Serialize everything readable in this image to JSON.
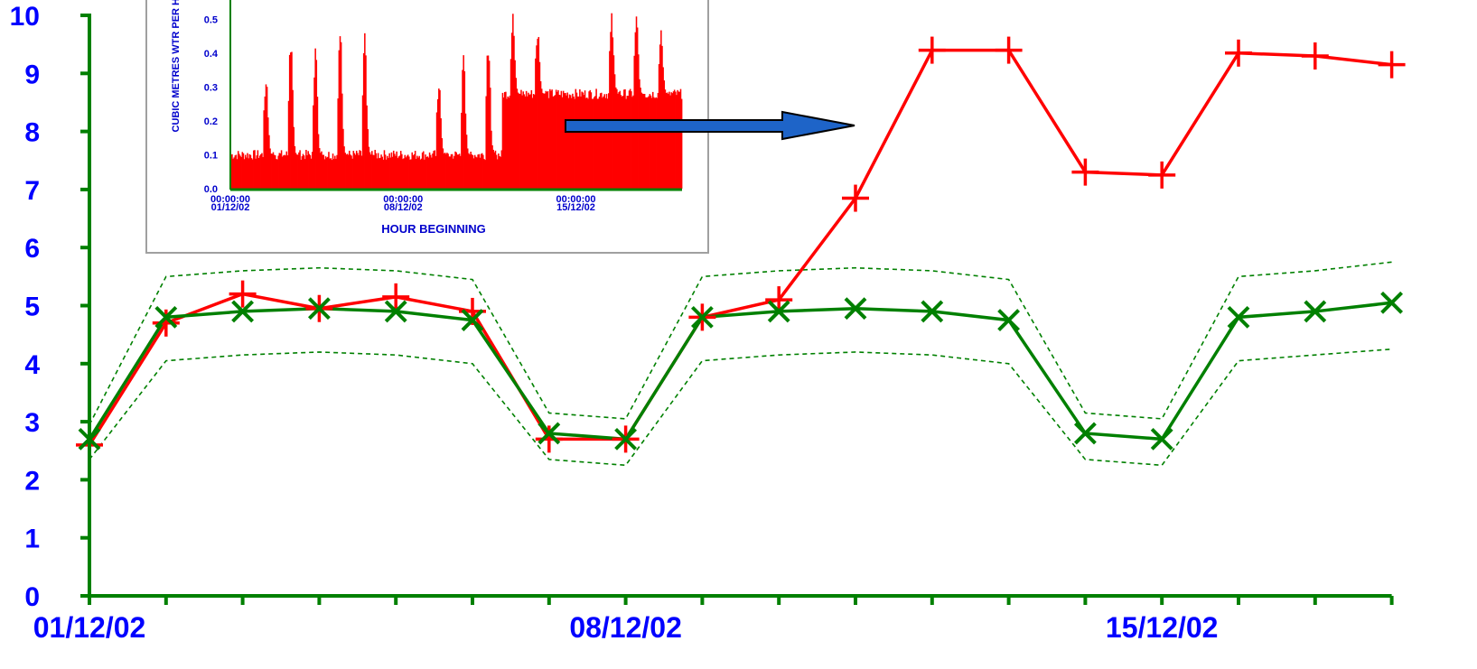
{
  "chart_data": [
    {
      "type": "line",
      "title": "",
      "xlabel": "",
      "ylabel": "",
      "ylim": [
        0,
        10
      ],
      "y_ticks": [
        "0",
        "1",
        "2",
        "3",
        "4",
        "5",
        "6",
        "7",
        "8",
        "9",
        "10"
      ],
      "x_tick_labels": [
        "01/12/02",
        "08/12/02",
        "15/12/02"
      ],
      "x_tick_label_positions": [
        1,
        8,
        15
      ],
      "x": [
        1,
        2,
        3,
        4,
        5,
        6,
        7,
        8,
        9,
        10,
        11,
        12,
        13,
        14,
        15,
        16,
        17,
        18
      ],
      "grid": false,
      "colors": {
        "axis": "#008000",
        "labels": "#0000ff",
        "actual": "#ff0000",
        "expected": "#008000",
        "arrow": "#1e64c8"
      },
      "series": [
        {
          "name": "",
          "color": "#ff0000",
          "marker": "+",
          "style": "solid",
          "values": [
            2.6,
            4.7,
            5.2,
            4.95,
            5.15,
            4.9,
            2.7,
            2.7,
            4.8,
            5.1,
            6.85,
            9.4,
            9.4,
            7.3,
            7.25,
            9.35,
            9.3,
            9.15
          ]
        },
        {
          "name": "",
          "color": "#008000",
          "marker": "x",
          "style": "solid",
          "values": [
            2.7,
            4.8,
            4.9,
            4.95,
            4.9,
            4.75,
            2.8,
            2.7,
            4.8,
            4.9,
            4.95,
            4.9,
            4.75,
            2.8,
            2.7,
            4.8,
            4.9,
            5.05
          ]
        },
        {
          "name": "",
          "color": "#008000",
          "marker": "none",
          "style": "dashed",
          "values": [
            2.95,
            5.5,
            5.6,
            5.65,
            5.6,
            5.45,
            3.15,
            3.05,
            5.5,
            5.6,
            5.65,
            5.6,
            5.45,
            3.15,
            3.05,
            5.5,
            5.6,
            5.75
          ]
        },
        {
          "name": "",
          "color": "#008000",
          "marker": "none",
          "style": "dashed",
          "values": [
            2.35,
            4.05,
            4.15,
            4.2,
            4.15,
            4.0,
            2.35,
            2.25,
            4.05,
            4.15,
            4.2,
            4.15,
            4.0,
            2.35,
            2.25,
            4.05,
            4.15,
            4.25
          ]
        }
      ]
    },
    {
      "type": "bar",
      "title": "",
      "xlabel": "HOUR BEGINNING",
      "ylabel": "CUBIC METRES WTR PER H",
      "ylim": [
        0,
        0.55
      ],
      "y_ticks": [
        "0.0",
        "0.1",
        "0.2",
        "0.3",
        "0.4",
        "0.5"
      ],
      "x_tick_labels": [
        [
          "00:00:00",
          "01/12/02"
        ],
        [
          "00:00:00",
          "08/12/02"
        ],
        [
          "00:00:00",
          "15/12/02"
        ]
      ],
      "x_tick_label_positions": [
        0,
        7,
        14
      ],
      "x_range_days": [
        0,
        18.3
      ],
      "colors": {
        "bars": "#ff0000",
        "axis": "#008000",
        "text": "#0000cc",
        "frame": "#a0a0a0"
      },
      "baseline": [
        0.1,
        0.1,
        0.1,
        0.1,
        0.1,
        0.1,
        0.1,
        0.1,
        0.1,
        0.1,
        0.1,
        0.28,
        0.28,
        0.28,
        0.28,
        0.28,
        0.28,
        0.28,
        0.28
      ],
      "daily_peaks": [
        0.0,
        0.35,
        0.47,
        0.44,
        0.52,
        0.46,
        0.0,
        0.0,
        0.35,
        0.4,
        0.48,
        0.52,
        0.49,
        0.0,
        0.0,
        0.54,
        0.52,
        0.47,
        0.0
      ]
    }
  ]
}
